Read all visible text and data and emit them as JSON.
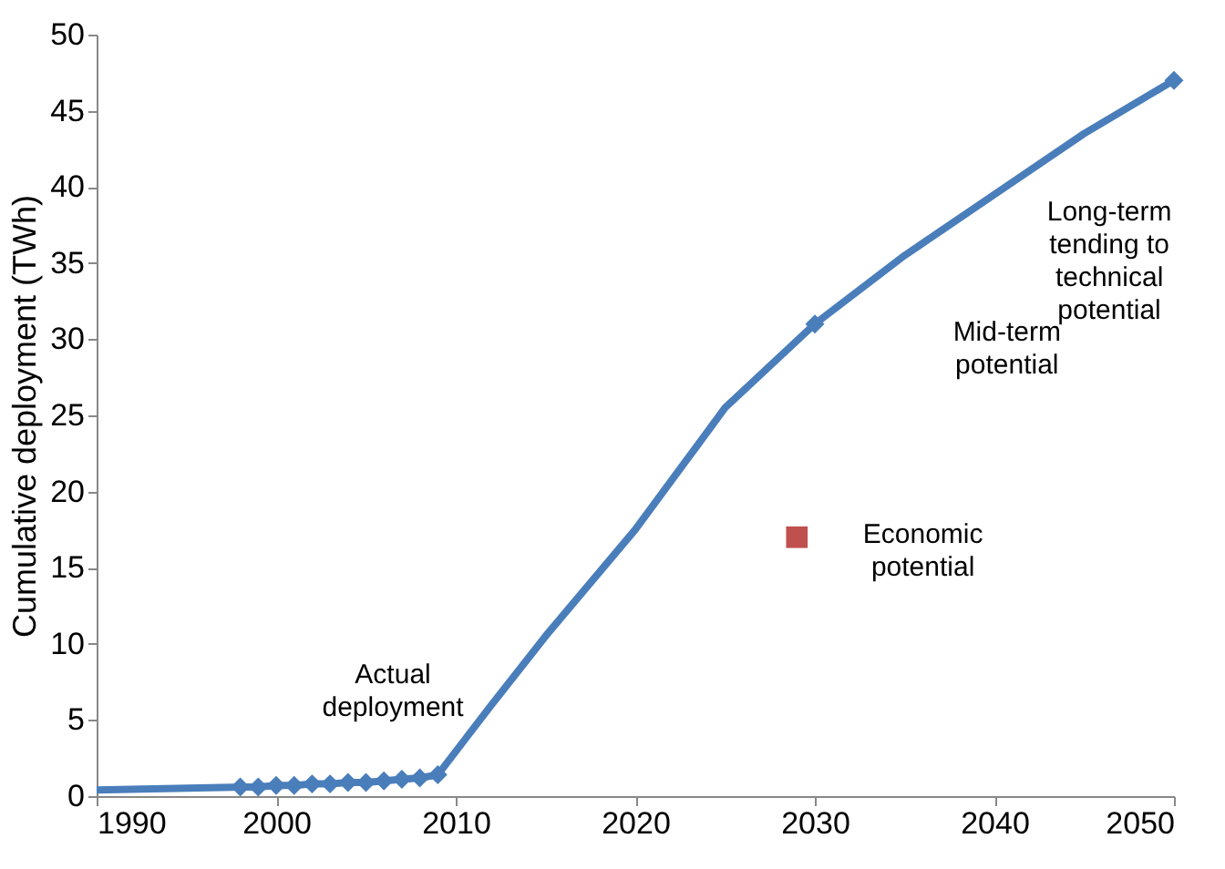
{
  "chart_data": {
    "type": "line",
    "ylabel": "Cumulative deployment (TWh)",
    "xlim": [
      1990,
      2050
    ],
    "xticks": [
      1990,
      2000,
      2010,
      2020,
      2030,
      2040,
      2050
    ],
    "ylim": [
      0,
      50
    ],
    "yticks": [
      0,
      5,
      10,
      15,
      20,
      25,
      30,
      35,
      40,
      45,
      50
    ],
    "grid": false,
    "line_style": "solid",
    "series": [
      {
        "color": "#4a7ebb",
        "marker": "none",
        "x": [
          1990,
          1998,
          1999,
          2000,
          2001,
          2002,
          2003,
          2004,
          2005,
          2006,
          2007,
          2008,
          2009,
          2012,
          2015,
          2020,
          2025,
          2030,
          2035,
          2040,
          2045,
          2050
        ],
        "values": [
          0.4,
          0.6,
          0.6,
          0.7,
          0.7,
          0.8,
          0.8,
          0.9,
          0.9,
          1.0,
          1.1,
          1.2,
          1.4,
          6,
          10.5,
          17.5,
          25.5,
          31,
          35.5,
          39.5,
          43.5,
          47
        ]
      },
      {
        "type": "scatter",
        "color": "#4a7ebb",
        "marker": "diamond",
        "x": [
          1998,
          1999,
          2000,
          2001,
          2002,
          2003,
          2004,
          2005,
          2006,
          2007,
          2008,
          2009,
          2030,
          2050
        ],
        "values": [
          0.6,
          0.6,
          0.7,
          0.7,
          0.8,
          0.8,
          0.9,
          0.9,
          1.0,
          1.1,
          1.2,
          1.4,
          31,
          47
        ]
      },
      {
        "type": "scatter",
        "color": "#c0504d",
        "marker": "square",
        "x": [
          2029
        ],
        "values": [
          17
        ]
      }
    ],
    "annotations": [
      "Actual\ndeployment",
      "Mid-term\npotential",
      "Long-term\ntending to\ntechnical\npotential",
      "Economic\npotential"
    ]
  }
}
